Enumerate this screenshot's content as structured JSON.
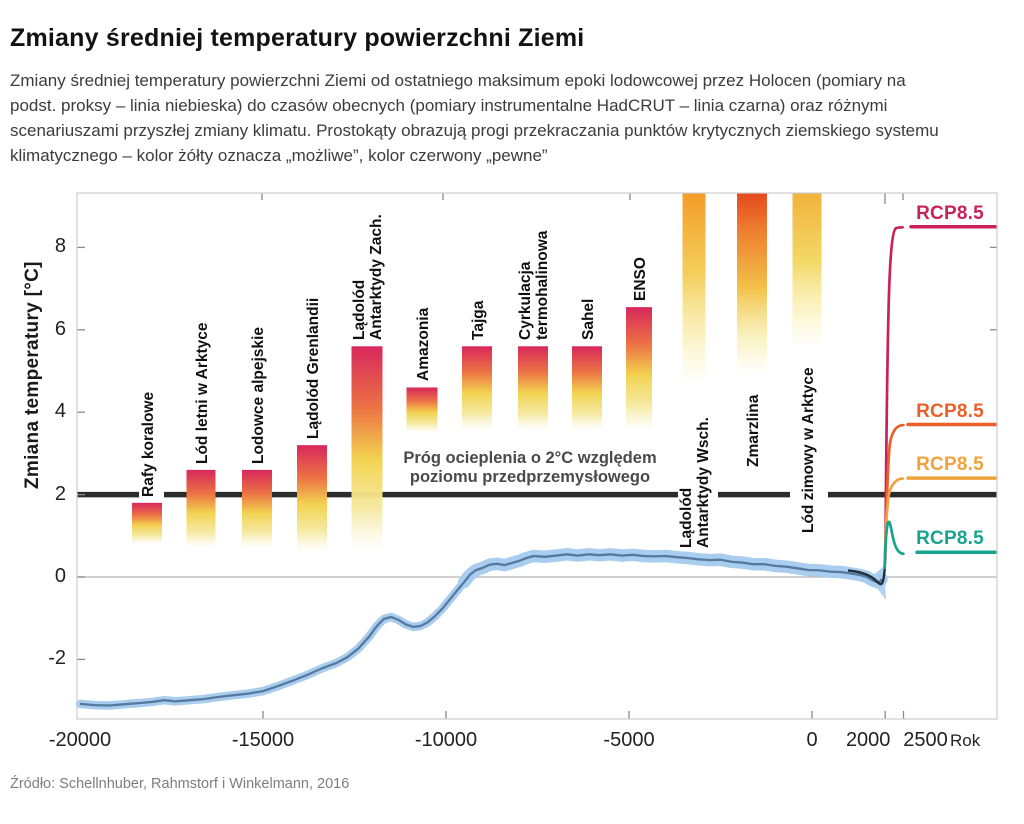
{
  "header": {
    "title": "Zmiany średniej temperatury powierzchni Ziemi",
    "subtitle": "Zmiany średniej temperatury powierzchni Ziemi od ostatniego maksimum epoki lodowcowej przez Holocen (pomiary na podst. proksy – linia niebieska) do czasów obecnych (pomiary instrumentalne HadCRUT – linia czarna) oraz różnymi scenariuszami przyszłej zmiany klimatu. Prostokąty obrazują progi przekraczania punktów krytycznych ziemskiego systemu klimatycznego – kolor żółty oznacza „możliwe”, kolor czerwony „pewne”"
  },
  "source": "Źródło: Schellnhuber, Rahmstorf i Winkelmann, 2016",
  "chart_data": {
    "type": "line",
    "title": "Zmiany średniej temperatury powierzchni Ziemi",
    "ylabel": "Zmiana temperatury [°C]",
    "xunit": "Rok",
    "ylim": [
      -3.5,
      9.3
    ],
    "xlim": [
      -20100,
      5000
    ],
    "grid": "zero-line only",
    "y_ticks": [
      8,
      6,
      4,
      2,
      0,
      -2
    ],
    "x_ticks": [
      -20000,
      -15000,
      -10000,
      -5000,
      0,
      2000,
      2500
    ],
    "threshold": {
      "value": 2,
      "label": "Próg ocieplenia o 2°C względem\npoziomu przedprzemysłowego",
      "color": "#2c2c2c"
    },
    "proxy_series": {
      "name": "proksy – linia niebieska",
      "band_color": "#a9cdee",
      "line_color": "#56799f",
      "points": [
        [
          -20000,
          -3.08
        ],
        [
          -19600,
          -3.11
        ],
        [
          -19200,
          -3.12
        ],
        [
          -18800,
          -3.09
        ],
        [
          -18400,
          -3.06
        ],
        [
          -18000,
          -3.03
        ],
        [
          -17700,
          -2.99
        ],
        [
          -17400,
          -3.02
        ],
        [
          -17000,
          -2.99
        ],
        [
          -16600,
          -2.96
        ],
        [
          -16200,
          -2.91
        ],
        [
          -15800,
          -2.87
        ],
        [
          -15400,
          -2.83
        ],
        [
          -15000,
          -2.77
        ],
        [
          -14600,
          -2.65
        ],
        [
          -14200,
          -2.52
        ],
        [
          -13800,
          -2.38
        ],
        [
          -13400,
          -2.22
        ],
        [
          -13000,
          -2.09
        ],
        [
          -12700,
          -1.95
        ],
        [
          -12400,
          -1.74
        ],
        [
          -12100,
          -1.45
        ],
        [
          -11900,
          -1.2
        ],
        [
          -11700,
          -1.02
        ],
        [
          -11500,
          -0.97
        ],
        [
          -11300,
          -1.04
        ],
        [
          -11100,
          -1.15
        ],
        [
          -10900,
          -1.21
        ],
        [
          -10700,
          -1.19
        ],
        [
          -10500,
          -1.1
        ],
        [
          -10300,
          -0.95
        ],
        [
          -10100,
          -0.77
        ],
        [
          -9900,
          -0.55
        ],
        [
          -9700,
          -0.33
        ],
        [
          -9500,
          -0.12
        ],
        [
          -9350,
          0.05
        ],
        [
          -9200,
          0.16
        ],
        [
          -9000,
          0.22
        ],
        [
          -8800,
          0.3
        ],
        [
          -8600,
          0.32
        ],
        [
          -8400,
          0.29
        ],
        [
          -8200,
          0.34
        ],
        [
          -8000,
          0.39
        ],
        [
          -7800,
          0.46
        ],
        [
          -7600,
          0.51
        ],
        [
          -7300,
          0.49
        ],
        [
          -7000,
          0.52
        ],
        [
          -6700,
          0.55
        ],
        [
          -6400,
          0.52
        ],
        [
          -6100,
          0.55
        ],
        [
          -5800,
          0.53
        ],
        [
          -5500,
          0.55
        ],
        [
          -5200,
          0.52
        ],
        [
          -4900,
          0.54
        ],
        [
          -4600,
          0.51
        ],
        [
          -4300,
          0.5
        ],
        [
          -4000,
          0.51
        ],
        [
          -3700,
          0.48
        ],
        [
          -3400,
          0.46
        ],
        [
          -3100,
          0.43
        ],
        [
          -2800,
          0.41
        ],
        [
          -2500,
          0.42
        ],
        [
          -2200,
          0.37
        ],
        [
          -1900,
          0.35
        ],
        [
          -1600,
          0.31
        ],
        [
          -1300,
          0.31
        ],
        [
          -1000,
          0.27
        ],
        [
          -700,
          0.25
        ],
        [
          -400,
          0.21
        ],
        [
          -100,
          0.17
        ],
        [
          200,
          0.16
        ],
        [
          500,
          0.13
        ],
        [
          800,
          0.12
        ],
        [
          1100,
          0.08
        ],
        [
          1300,
          0.05
        ],
        [
          1500,
          0.0
        ],
        [
          1650,
          -0.08
        ],
        [
          1800,
          -0.13
        ],
        [
          1870,
          -0.1
        ],
        [
          1900,
          -0.05
        ]
      ]
    },
    "instrumental_series": {
      "name": "HadCRUT – linia czarna",
      "color": "#22303c"
    },
    "scenarios": [
      {
        "label": "RCP8.5",
        "color": "#c9215c",
        "end_value": 8.5
      },
      {
        "label": "RCP8.5",
        "color": "#ec5f28",
        "end_value": 3.7
      },
      {
        "label": "RCP8.5",
        "color": "#f0a33c",
        "end_value": 2.4
      },
      {
        "label": "RCP8.5",
        "color": "#17a38d",
        "end_value": 0.6
      }
    ],
    "tipping_elements": [
      {
        "label": "Rafy koralowe",
        "t_min": 0.8,
        "t_max": 1.8,
        "clipped": false,
        "color": "#d8285c"
      },
      {
        "label": "Lód letni w Arktyce",
        "t_min": 0.7,
        "t_max": 2.6,
        "clipped": false,
        "color": "#d8285c"
      },
      {
        "label": "Lodowce alpejskie",
        "t_min": 0.7,
        "t_max": 2.6,
        "clipped": false,
        "color": "#d8285c"
      },
      {
        "label": "Lądolód Grenlandii",
        "t_min": 0.6,
        "t_max": 3.2,
        "clipped": false,
        "color": "#d8285c"
      },
      {
        "label": "Lądolód\nAntarktydy Zach.",
        "t_min": 0.65,
        "t_max": 5.6,
        "clipped": false,
        "color": "#d8285c"
      },
      {
        "label": "Amazonia",
        "t_min": 3.5,
        "t_max": 4.6,
        "clipped": false,
        "color": "#d8285c"
      },
      {
        "label": "Tajga",
        "t_min": 3.55,
        "t_max": 5.6,
        "clipped": false,
        "color": "#d8285c"
      },
      {
        "label": "Cyrkulacja\ntermohalinowa",
        "t_min": 3.55,
        "t_max": 5.6,
        "clipped": false,
        "color": "#d8285c"
      },
      {
        "label": "Sahel",
        "t_min": 3.55,
        "t_max": 5.6,
        "clipped": false,
        "color": "#d8285c"
      },
      {
        "label": "ENSO",
        "t_min": 3.55,
        "t_max": 6.55,
        "clipped": false,
        "color": "#d8285c"
      },
      {
        "label": "Lądolód\nAntarktydy Wsch.",
        "t_min": 4.65,
        "t_max": 9.4,
        "clipped": true,
        "color": "#f49c28"
      },
      {
        "label": "Zmarzlina",
        "t_min": 4.85,
        "t_max": 9.4,
        "clipped": true,
        "color": "#e5491d"
      },
      {
        "label": "Lód zimowy w Arktyce",
        "t_min": 5.55,
        "t_max": 9.4,
        "clipped": true,
        "color": "#f1b23a"
      }
    ]
  }
}
